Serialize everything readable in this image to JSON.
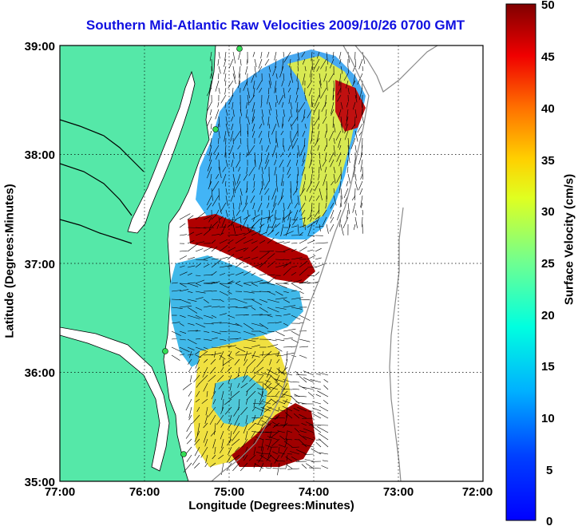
{
  "title": "Southern Mid-Atlantic Raw Velocities 2009/10/26 0700 GMT",
  "x_axis": {
    "label": "Longitude (Degrees:Minutes)",
    "ticks": [
      "77:00",
      "76:00",
      "75:00",
      "74:00",
      "73:00",
      "72:00"
    ]
  },
  "y_axis": {
    "label": "Latitude (Degrees:Minutes)",
    "ticks": [
      "39:00",
      "38:00",
      "37:00",
      "36:00",
      "35:00"
    ]
  },
  "colorbar": {
    "label": "Surface Velocity (cm/s)",
    "ticks": [
      "50",
      "45",
      "40",
      "35",
      "30",
      "25",
      "20",
      "15",
      "10",
      "5",
      "0"
    ],
    "range": [
      0,
      50
    ],
    "colormap": "jet"
  },
  "map": {
    "lon_range": [
      -77,
      -72
    ],
    "lat_range": [
      35,
      39
    ],
    "land_color": "#55e8a8",
    "grid": "dotted",
    "field": "surface current velocity vectors over colored speed field"
  }
}
